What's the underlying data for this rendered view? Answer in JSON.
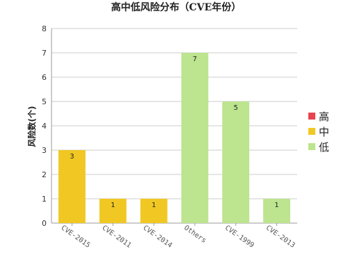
{
  "chart_data": {
    "type": "bar",
    "title": "高中低风险分布（CVE年份）",
    "ylabel": "风险数(个)",
    "xlabel": "",
    "ylim": [
      0,
      8
    ],
    "yticks": [
      "0",
      "1",
      "2",
      "3",
      "4",
      "5",
      "6",
      "7",
      "8"
    ],
    "grid": true,
    "legend_position": "right",
    "categories": [
      "CVE-2015",
      "CVE-2011",
      "CVE-2014",
      "Others",
      "CVE-1999",
      "CVE-2013"
    ],
    "values": [
      3,
      1,
      1,
      7,
      5,
      1
    ],
    "value_labels": [
      "3",
      "1",
      "1",
      "7",
      "5",
      "1"
    ],
    "bar_levels": [
      "中",
      "中",
      "中",
      "低",
      "低",
      "低"
    ],
    "legend": [
      {
        "label": "高",
        "color": "#e8434f"
      },
      {
        "label": "中",
        "color": "#f1c823"
      },
      {
        "label": "低",
        "color": "#bde48e"
      }
    ]
  }
}
